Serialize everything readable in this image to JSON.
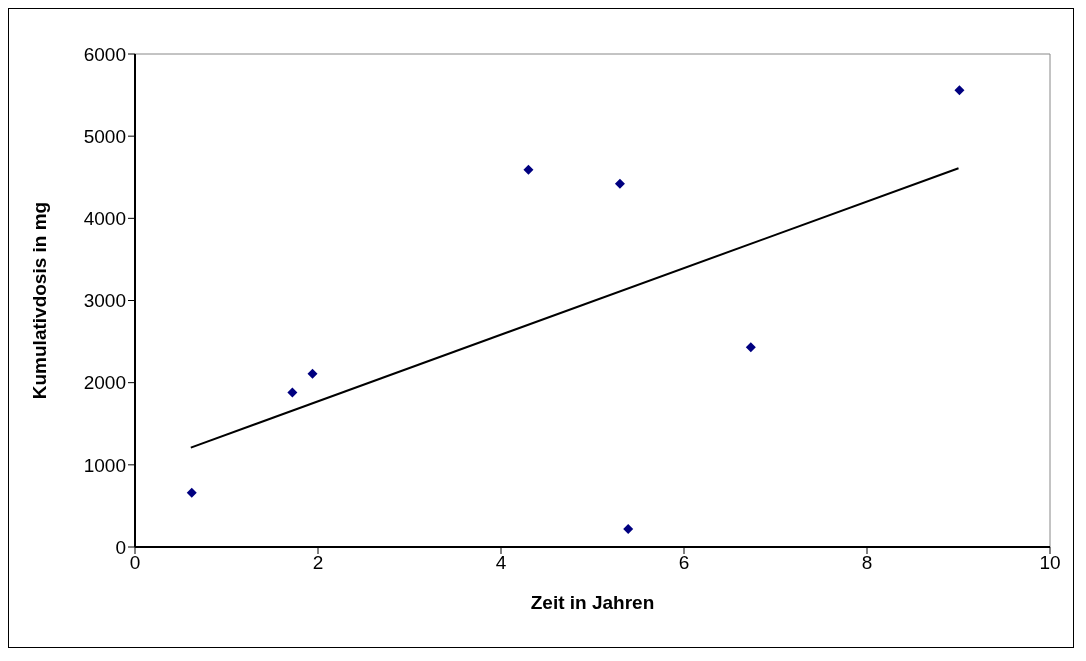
{
  "chart_data": {
    "type": "scatter",
    "xlabel": "Zeit in Jahren",
    "ylabel": "Kumulativdosis in mg",
    "xlim": [
      0,
      10
    ],
    "xticks": [
      0,
      2,
      4,
      6,
      8,
      10
    ],
    "ylim": [
      0,
      6000
    ],
    "yticks": [
      0,
      1000,
      2000,
      3000,
      4000,
      5000,
      6000
    ],
    "grid": false,
    "marker": "diamond",
    "series": [
      {
        "color": "#000080",
        "x": [
          0.62,
          1.72,
          1.94,
          4.3,
          5.3,
          5.39,
          6.73,
          9.01
        ],
        "values": [
          660,
          1880,
          2110,
          4590,
          4420,
          220,
          2430,
          5560
        ]
      },
      {
        "type": "line",
        "color": "#000000",
        "x": [
          0.61,
          9.0
        ],
        "values": [
          1210,
          4610
        ],
        "marker": "none"
      }
    ]
  }
}
